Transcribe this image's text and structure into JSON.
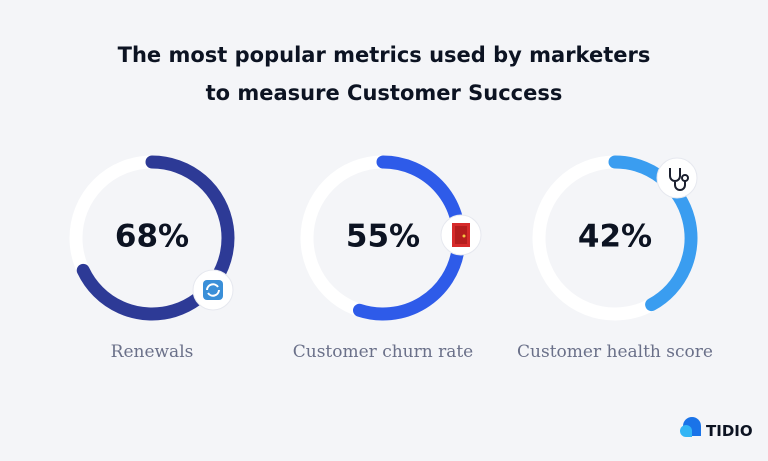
{
  "title": [
    "The most popular metrics used by marketers",
    "to measure Customer Success"
  ],
  "chart_data": [
    {
      "type": "donut",
      "categories": [
        "Renewals"
      ],
      "values": [
        68
      ],
      "value_labels": [
        "68%"
      ],
      "color": "#2d3a96",
      "ylim": [
        0,
        100
      ]
    },
    {
      "type": "donut",
      "categories": [
        "Customer churn rate"
      ],
      "values": [
        55
      ],
      "value_labels": [
        "55%"
      ],
      "color": "#2e5be9",
      "ylim": [
        0,
        100
      ]
    },
    {
      "type": "donut",
      "categories": [
        "Customer health score"
      ],
      "values": [
        42
      ],
      "value_labels": [
        "42%"
      ],
      "color": "#3a9df0",
      "ylim": [
        0,
        100
      ]
    }
  ],
  "brand": "TIDIO"
}
